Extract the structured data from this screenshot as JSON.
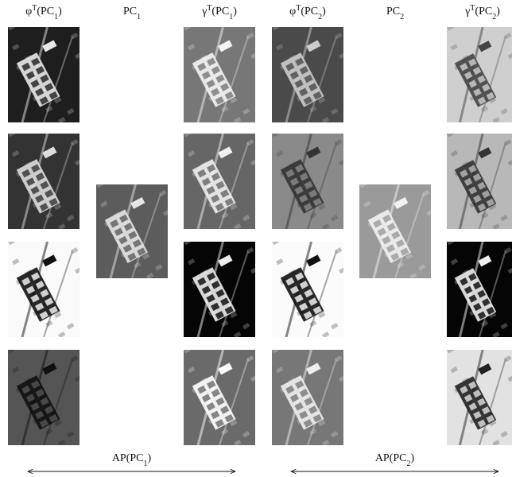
{
  "columns": [
    {
      "header": [
        {
          "text": "φ"
        },
        {
          "text": "T",
          "style": "sup"
        },
        {
          "text": "(PC"
        },
        {
          "text": "1",
          "style": "sub"
        },
        {
          "text": ")"
        }
      ]
    },
    {
      "header": [
        {
          "text": "PC"
        },
        {
          "text": "1",
          "style": "sub"
        }
      ]
    },
    {
      "header": [
        {
          "text": "γ"
        },
        {
          "text": "T",
          "style": "sup"
        },
        {
          "text": "(PC"
        },
        {
          "text": "1",
          "style": "sub"
        },
        {
          "text": ")"
        }
      ]
    },
    {
      "header": [
        {
          "text": "φ"
        },
        {
          "text": "T",
          "style": "sup"
        },
        {
          "text": "(PC"
        },
        {
          "text": "2",
          "style": "sub"
        },
        {
          "text": ")"
        }
      ]
    },
    {
      "header": [
        {
          "text": "PC"
        },
        {
          "text": "2",
          "style": "sub"
        }
      ]
    },
    {
      "header": [
        {
          "text": "γ"
        },
        {
          "text": "T",
          "style": "sup"
        },
        {
          "text": "(PC"
        },
        {
          "text": "2",
          "style": "sub"
        },
        {
          "text": ")"
        }
      ]
    }
  ],
  "groups": [
    {
      "label": [
        {
          "text": "AP(PC"
        },
        {
          "text": "1",
          "style": "sub"
        },
        {
          "text": ")"
        }
      ]
    },
    {
      "label": [
        {
          "text": "AP(PC"
        },
        {
          "text": "2",
          "style": "sub"
        },
        {
          "text": ")"
        }
      ]
    }
  ]
}
